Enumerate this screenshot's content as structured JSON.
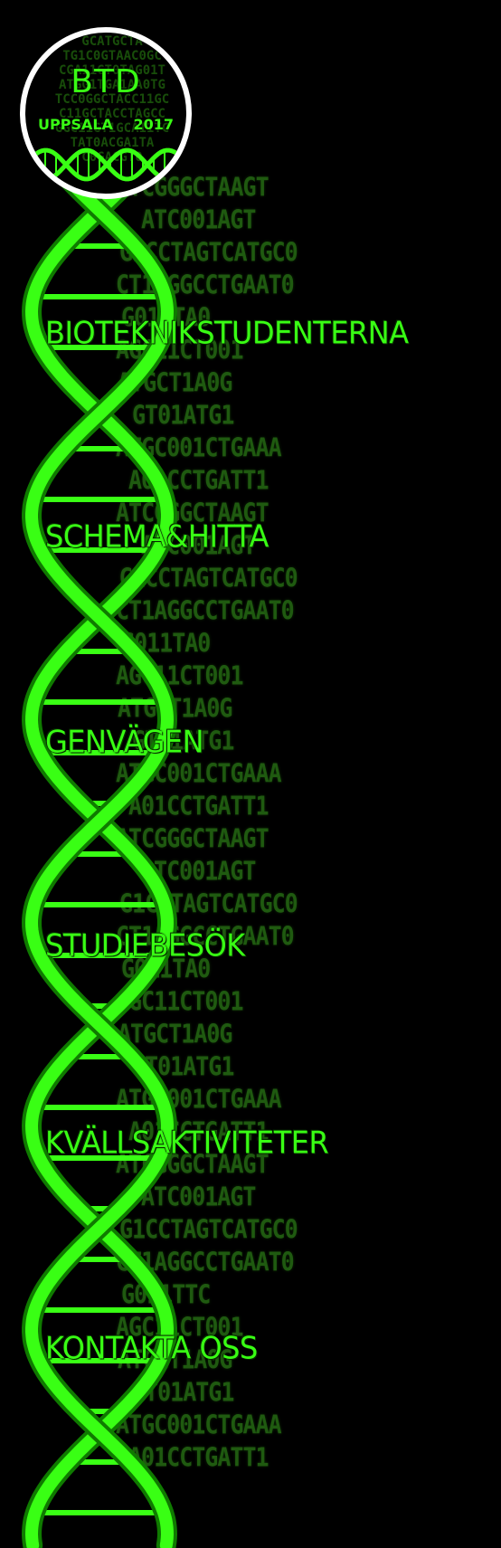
{
  "logo": {
    "title": "BTD",
    "location": "UPPSALA",
    "year": "2017",
    "background_code": [
      "GCATGCTA",
      "TG1C0GTAAC0GC",
      "CGA11GT0TAG01T",
      "ATGG1TGA1AA0TG",
      "TCC0GGCTACC11GC",
      "C11GCTACCTAGCC",
      "GGC11GT1GCA11TC",
      "TAT0ACGA1TA",
      "C0GACGT0"
    ]
  },
  "nav": [
    {
      "label": "BIOTEKNIKSTUDENTERNA"
    },
    {
      "label": "SCHEMA&HITTA"
    },
    {
      "label": "GENVÄGEN"
    },
    {
      "label": "STUDIEBESÖK"
    },
    {
      "label": "KVÄLLSAKTIVITETER"
    },
    {
      "label": "KONTAKTA OSS"
    }
  ],
  "code_lines": [
    "ATCGGGCTAAGT",
    "ATC001AGT",
    "G1CCTAGTCATGC0",
    "CT1AGGCCTGAAT0",
    "G011TA0",
    "AGC11CT001",
    "ATGCT1A0G",
    "GT01ATG1",
    "ATGC001CTGAAA",
    "A01CCTGATT1",
    "ATCGGGCTAAGT",
    "ATC001AGT",
    "G1CCTAGTCATGC0",
    "CT1AGGCCTGAAT0",
    "G011TA0",
    "AGC11CT001",
    "ATGCT1A0G",
    "GT01ATG1",
    "ATGC001CTGAAA",
    "A01CCTGATT1",
    "ATCGGGCTAAGT",
    "ATC001AGT",
    "G1CCTAGTCATGC0",
    "CT1AGGCCTGAAT0",
    "G011TA0",
    "AGC11CT001",
    "ATGCT1A0G",
    "GT01ATG1",
    "ATGC001CTGAAA",
    "A01CCTGATT1",
    "ATCGGGCTAAGT",
    "ATC001AGT",
    "G1CCTAGTCATGC0",
    "CT1AGGCCTGAAT0",
    "G011TTC",
    "AGC11CT001",
    "ATGCT1A0G",
    "GT01ATG1",
    "ATGC001CTGAAA",
    "A01CCTGATT1"
  ],
  "colors": {
    "background": "#000000",
    "helix_green": "#39ff14",
    "helix_dark": "#0f7a00",
    "code_green": "#1f5a10",
    "logo_border": "#ffffff"
  }
}
